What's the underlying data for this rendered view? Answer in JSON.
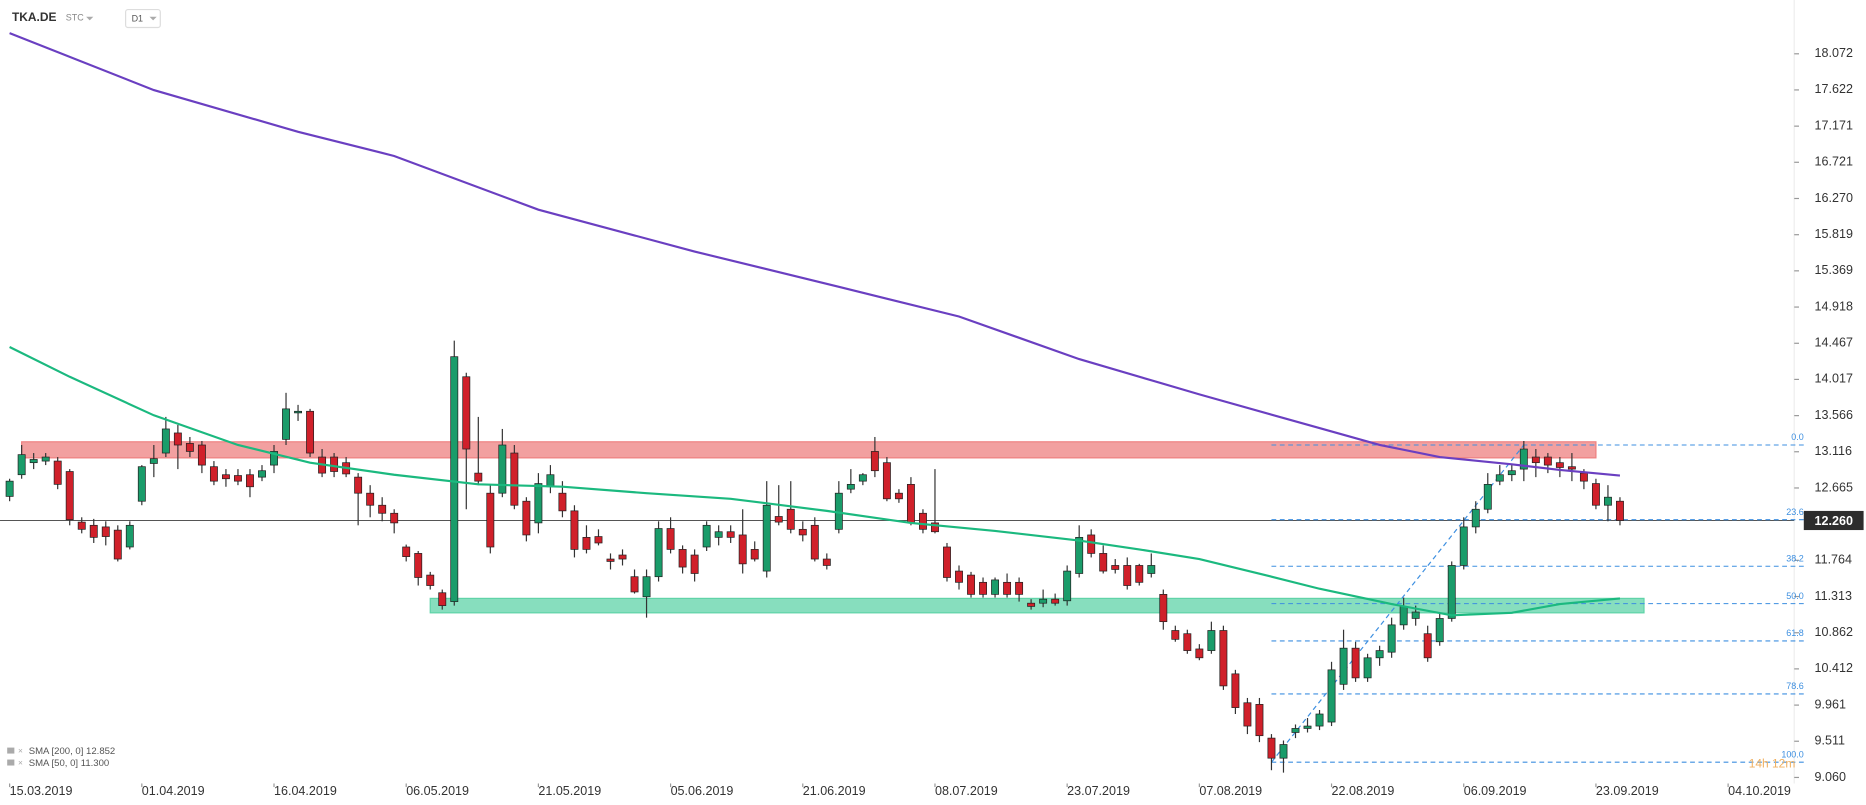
{
  "header": {
    "symbol": "TKA.DE",
    "account": "STC",
    "interval": "D1"
  },
  "chart_data": {
    "type": "candlestick",
    "xlim": [
      -0.8,
      148.5
    ],
    "xticks": [
      {
        "value": 0,
        "label": "15.03.2019"
      },
      {
        "value": 11,
        "label": "01.04.2019"
      },
      {
        "value": 22,
        "label": "16.04.2019"
      },
      {
        "value": 33,
        "label": "06.05.2019"
      },
      {
        "value": 44,
        "label": "21.05.2019"
      },
      {
        "value": 55,
        "label": "05.06.2019"
      },
      {
        "value": 66,
        "label": "21.06.2019"
      },
      {
        "value": 77,
        "label": "08.07.2019"
      },
      {
        "value": 88,
        "label": "23.07.2019"
      },
      {
        "value": 99,
        "label": "07.08.2019"
      },
      {
        "value": 110,
        "label": "22.08.2019"
      },
      {
        "value": 121,
        "label": "06.09.2019"
      },
      {
        "value": 132,
        "label": "23.09.2019"
      },
      {
        "value": 143,
        "label": "04.10.2019"
      }
    ],
    "ylim": [
      8.985,
      18.593
    ],
    "yticks": [
      18.072,
      17.622,
      17.171,
      16.721,
      {
        "value": 16.27,
        "label": "16.270"
      },
      15.819,
      15.369,
      14.918,
      14.467,
      14.017,
      13.566,
      13.116,
      12.665,
      11.764,
      11.313,
      10.862,
      10.412,
      9.961,
      9.511,
      {
        "value": 9.06,
        "label": "9.060"
      }
    ],
    "up_color": "#1a9c6a",
    "down_color": "#d0202a",
    "open": [
      12.56,
      12.83,
      12.98,
      13.0,
      13.0,
      12.87,
      12.24,
      12.2,
      12.18,
      12.14,
      11.93,
      12.5,
      12.97,
      13.1,
      13.35,
      13.22,
      13.2,
      12.93,
      12.83,
      12.82,
      12.83,
      12.8,
      12.95,
      13.27,
      13.6,
      13.62,
      13.05,
      13.05,
      12.98,
      12.8,
      12.6,
      12.45,
      12.35,
      11.93,
      11.85,
      11.58,
      11.36,
      11.25,
      14.05,
      12.85,
      12.6,
      12.6,
      13.1,
      12.5,
      12.23,
      12.68,
      12.6,
      12.38,
      12.05,
      12.06,
      11.78,
      11.83,
      11.56,
      11.31,
      11.56,
      12.16,
      11.9,
      11.83,
      11.93,
      12.05,
      12.12,
      12.08,
      11.9,
      11.63,
      12.31,
      12.4,
      12.15,
      12.2,
      11.78,
      12.15,
      12.65,
      12.75,
      13.12,
      12.98,
      12.6,
      12.71,
      12.35,
      12.23,
      11.93,
      11.63,
      11.58,
      11.49,
      11.34,
      11.49,
      11.49,
      11.23,
      11.23,
      11.28,
      11.26,
      11.6,
      12.08,
      11.85,
      11.7,
      11.7,
      11.7,
      11.6,
      11.34,
      10.89,
      10.85,
      10.66,
      10.64,
      10.89,
      10.35,
      9.99,
      9.97,
      9.55,
      9.3,
      9.62,
      9.67,
      9.7,
      9.75,
      10.22,
      10.67,
      10.3,
      10.55,
      10.62,
      10.96,
      11.04,
      10.85,
      10.75,
      11.04,
      11.7,
      12.18,
      12.4,
      12.75,
      12.83,
      12.9,
      13.05,
      13.05,
      12.98,
      12.93,
      12.85,
      12.72,
      12.45,
      12.5
    ],
    "high": [
      12.78,
      13.2,
      13.1,
      13.1,
      13.05,
      12.9,
      12.3,
      12.28,
      12.25,
      12.2,
      12.25,
      12.95,
      13.2,
      13.55,
      13.45,
      13.3,
      13.25,
      13.0,
      12.9,
      12.9,
      12.9,
      12.95,
      13.2,
      13.85,
      13.7,
      13.65,
      13.15,
      13.1,
      13.05,
      12.85,
      12.7,
      12.55,
      12.4,
      11.96,
      11.88,
      11.62,
      11.4,
      14.5,
      14.1,
      13.55,
      12.7,
      13.4,
      13.2,
      12.55,
      12.85,
      12.95,
      12.75,
      12.45,
      12.2,
      12.15,
      11.85,
      11.9,
      11.65,
      11.65,
      12.25,
      12.3,
      11.95,
      11.9,
      12.25,
      12.2,
      12.2,
      12.4,
      12.0,
      12.75,
      12.7,
      12.75,
      12.25,
      12.3,
      11.85,
      12.75,
      12.9,
      12.85,
      13.3,
      13.05,
      12.65,
      12.8,
      12.4,
      12.9,
      11.98,
      11.7,
      11.62,
      11.55,
      11.55,
      11.6,
      11.55,
      11.28,
      11.4,
      11.35,
      11.7,
      12.2,
      12.15,
      11.95,
      11.78,
      11.8,
      11.72,
      11.85,
      11.4,
      10.95,
      10.9,
      10.72,
      11.0,
      10.95,
      10.4,
      10.05,
      10.05,
      9.6,
      9.52,
      9.72,
      9.8,
      9.9,
      10.5,
      10.9,
      10.75,
      10.6,
      10.7,
      11.05,
      11.3,
      11.2,
      10.95,
      11.1,
      11.75,
      12.3,
      12.5,
      12.85,
      12.95,
      12.95,
      13.25,
      13.15,
      13.1,
      13.05,
      13.1,
      12.9,
      12.78,
      12.7,
      12.55
    ],
    "low": [
      12.5,
      12.78,
      12.9,
      12.95,
      12.65,
      12.2,
      12.1,
      11.98,
      11.95,
      11.75,
      11.9,
      12.45,
      12.8,
      13.05,
      12.9,
      13.05,
      12.85,
      12.7,
      12.68,
      12.7,
      12.55,
      12.75,
      12.85,
      13.2,
      13.5,
      13.05,
      12.8,
      12.8,
      12.8,
      12.2,
      12.3,
      12.25,
      12.1,
      11.75,
      11.45,
      11.4,
      11.15,
      11.2,
      12.4,
      12.7,
      11.85,
      12.55,
      12.4,
      12.0,
      12.1,
      12.6,
      12.3,
      11.8,
      11.85,
      11.95,
      11.65,
      11.7,
      11.35,
      11.05,
      11.5,
      11.85,
      11.6,
      11.5,
      11.88,
      11.95,
      11.98,
      11.6,
      11.75,
      11.55,
      12.2,
      12.1,
      12.0,
      11.75,
      11.65,
      12.1,
      12.6,
      12.7,
      12.8,
      12.5,
      12.48,
      12.2,
      12.1,
      12.1,
      11.5,
      11.4,
      11.3,
      11.3,
      11.3,
      11.3,
      11.25,
      11.15,
      11.18,
      11.2,
      11.2,
      11.55,
      11.8,
      11.6,
      11.6,
      11.4,
      11.45,
      11.55,
      10.9,
      10.75,
      10.6,
      10.52,
      10.6,
      10.15,
      9.85,
      9.6,
      9.5,
      9.15,
      9.12,
      9.55,
      9.62,
      9.65,
      9.7,
      10.15,
      10.25,
      10.25,
      10.45,
      10.55,
      10.9,
      10.95,
      10.5,
      10.7,
      11.0,
      11.65,
      12.1,
      12.35,
      12.7,
      12.75,
      12.75,
      12.8,
      12.85,
      12.8,
      12.75,
      12.65,
      12.4,
      12.25,
      12.2
    ],
    "close": [
      12.75,
      13.08,
      13.02,
      13.05,
      12.71,
      12.27,
      12.15,
      12.05,
      12.06,
      11.78,
      12.2,
      12.93,
      13.03,
      13.4,
      13.2,
      13.12,
      12.95,
      12.75,
      12.78,
      12.75,
      12.68,
      12.88,
      13.12,
      13.65,
      13.62,
      13.1,
      12.85,
      12.87,
      12.84,
      12.6,
      12.45,
      12.35,
      12.23,
      11.81,
      11.55,
      11.45,
      11.2,
      14.3,
      13.15,
      12.75,
      11.93,
      13.2,
      12.45,
      12.08,
      12.72,
      12.83,
      12.38,
      11.9,
      11.9,
      11.98,
      11.75,
      11.78,
      11.37,
      11.56,
      12.16,
      11.9,
      11.68,
      11.6,
      12.2,
      12.12,
      12.05,
      11.72,
      11.78,
      12.45,
      12.24,
      12.15,
      12.08,
      11.78,
      11.7,
      12.6,
      12.71,
      12.83,
      12.88,
      12.53,
      12.53,
      12.23,
      12.15,
      12.12,
      11.55,
      11.49,
      11.34,
      11.34,
      11.52,
      11.34,
      11.34,
      11.19,
      11.28,
      11.23,
      11.63,
      12.05,
      11.85,
      11.63,
      11.65,
      11.45,
      11.49,
      11.7,
      11.0,
      10.78,
      10.64,
      10.55,
      10.89,
      10.2,
      9.93,
      9.7,
      9.58,
      9.3,
      9.47,
      9.67,
      9.7,
      9.85,
      10.4,
      10.67,
      10.3,
      10.55,
      10.64,
      10.96,
      11.19,
      11.12,
      10.55,
      11.04,
      11.7,
      12.18,
      12.4,
      12.71,
      12.83,
      12.88,
      13.15,
      12.98,
      12.95,
      12.92,
      12.9,
      12.75,
      12.45,
      12.55,
      12.26
    ],
    "series": [
      {
        "name": "SMA [200, 0]",
        "last_label": "12.852",
        "color": "#6a3fc1",
        "x": [
          0,
          12,
          24,
          32,
          44,
          57,
          69,
          79,
          89,
          99,
          109,
          114,
          119,
          125,
          129,
          134
        ],
        "values": [
          18.33,
          17.62,
          17.1,
          16.8,
          16.13,
          15.61,
          15.17,
          14.8,
          14.27,
          13.83,
          13.41,
          13.2,
          13.05,
          12.96,
          12.89,
          12.82
        ]
      },
      {
        "name": "SMA [50, 0]",
        "last_label": "11.300",
        "color": "#1bb97f",
        "x": [
          0,
          5,
          12,
          19,
          25,
          32,
          39,
          46,
          53,
          60,
          68,
          75,
          82,
          89,
          94,
          99,
          105,
          109,
          115,
          120,
          125,
          129,
          134
        ],
        "values": [
          14.42,
          14.05,
          13.57,
          13.2,
          12.98,
          12.83,
          12.71,
          12.68,
          12.6,
          12.53,
          12.38,
          12.23,
          12.13,
          12.01,
          11.9,
          11.78,
          11.56,
          11.41,
          11.22,
          11.08,
          11.11,
          11.22,
          11.29
        ]
      }
    ],
    "zones": [
      {
        "x": [
          1,
          132
        ],
        "y": [
          13.04,
          13.24
        ],
        "color": "#ee8080"
      },
      {
        "x": [
          35,
          136
        ],
        "y": [
          11.11,
          11.29
        ],
        "color": "#5fd3a8"
      }
    ],
    "fibonacci": {
      "x_start": 105,
      "color": "#3d8fe0",
      "levels": [
        {
          "label": "0.0",
          "price": 13.2
        },
        {
          "label": "23.6",
          "price": 12.27
        },
        {
          "label": "38.2",
          "price": 11.69
        },
        {
          "label": "50.0",
          "price": 11.225
        },
        {
          "label": "61.8",
          "price": 10.76
        },
        {
          "label": "78.6",
          "price": 10.1
        },
        {
          "label": "100.0",
          "price": 9.25
        }
      ]
    },
    "trend_line": {
      "x": [
        105,
        126
      ],
      "y": [
        9.25,
        13.2
      ]
    },
    "last_price": {
      "value": 12.26,
      "label": "12.260"
    },
    "countdown": "14h 12m"
  }
}
